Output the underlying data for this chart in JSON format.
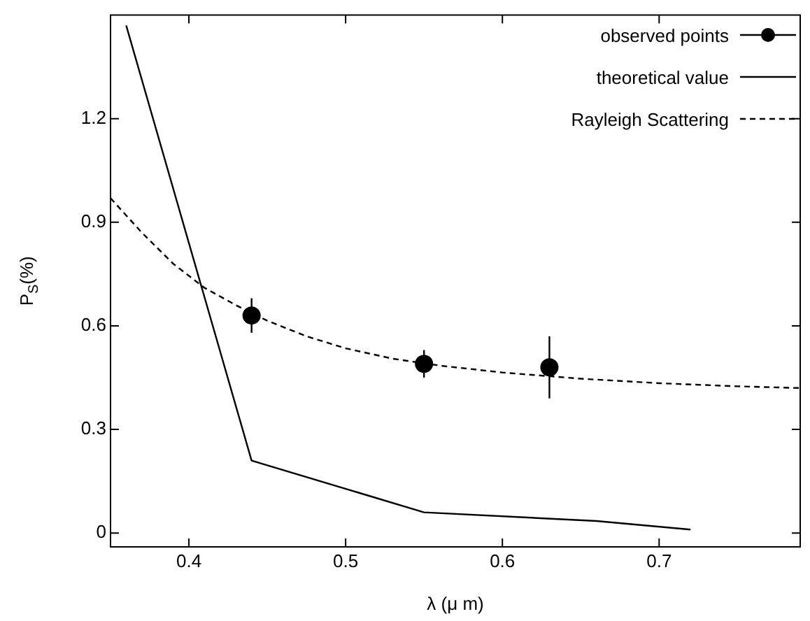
{
  "chart_data": {
    "type": "line",
    "xlabel": "λ (μ m)",
    "ylabel": "P$_{S}$(%)",
    "xlim": [
      0.35,
      0.79
    ],
    "xticks": [
      0.4,
      0.5,
      0.6,
      0.7
    ],
    "ylim": [
      -0.04,
      1.5
    ],
    "yticks": [
      0,
      0.3,
      0.6,
      0.9,
      1.2
    ],
    "grid": false,
    "legend": "top right",
    "series": [
      {
        "name": "observed points",
        "type": "scatter",
        "marker": "circle",
        "color": "#000000",
        "x": [
          0.44,
          0.55,
          0.63
        ],
        "values": [
          0.63,
          0.49,
          0.48
        ],
        "errors": [
          0.05,
          0.04,
          0.09
        ]
      },
      {
        "name": "theoretical value",
        "type": "line",
        "line_style": "solid",
        "color": "#000000",
        "x": [
          0.36,
          0.44,
          0.55,
          0.66,
          0.72
        ],
        "values": [
          1.47,
          0.21,
          0.06,
          0.035,
          0.01
        ]
      },
      {
        "name": "Rayleigh Scattering",
        "type": "line",
        "line_style": "dashed",
        "color": "#000000",
        "x": [
          0.35,
          0.37,
          0.39,
          0.41,
          0.43,
          0.45,
          0.475,
          0.5,
          0.53,
          0.56,
          0.6,
          0.65,
          0.7,
          0.75,
          0.79
        ],
        "values": [
          0.97,
          0.87,
          0.78,
          0.71,
          0.66,
          0.615,
          0.57,
          0.535,
          0.505,
          0.485,
          0.465,
          0.447,
          0.434,
          0.425,
          0.42
        ]
      }
    ]
  }
}
